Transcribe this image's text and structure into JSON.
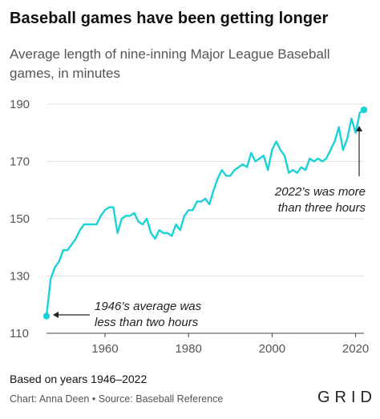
{
  "header": {
    "title": "Baseball games have been getting longer",
    "subtitle": "Average length of nine-inning Major League Baseball games, in minutes"
  },
  "footer": {
    "note": "Based on years 1946–2022",
    "credit": "Chart: Anna Deen • Source: Baseball Reference",
    "logo": "GRID"
  },
  "annotations": {
    "start_line1": "1946’s average was",
    "start_line2": "less than two hours",
    "end_line1": "2022’s was more",
    "end_line2": "than three hours"
  },
  "colors": {
    "line": "#1ad1d8",
    "grid": "#e3e3e3",
    "axis": "#444444"
  },
  "chart_data": {
    "type": "line",
    "title": "Baseball games have been getting longer",
    "subtitle": "Average length of nine-inning Major League Baseball games, in minutes",
    "xlim": [
      1946,
      2022
    ],
    "ylim": [
      110,
      190
    ],
    "xticks": [
      1960,
      1980,
      2000,
      2020
    ],
    "yticks": [
      110,
      130,
      150,
      170,
      190
    ],
    "grid": true,
    "x": [
      1946,
      1947,
      1948,
      1949,
      1950,
      1951,
      1952,
      1953,
      1954,
      1955,
      1956,
      1957,
      1958,
      1959,
      1960,
      1961,
      1962,
      1963,
      1964,
      1965,
      1966,
      1967,
      1968,
      1969,
      1970,
      1971,
      1972,
      1973,
      1974,
      1975,
      1976,
      1977,
      1978,
      1979,
      1980,
      1981,
      1982,
      1983,
      1984,
      1985,
      1986,
      1987,
      1988,
      1989,
      1990,
      1991,
      1992,
      1993,
      1994,
      1995,
      1996,
      1997,
      1998,
      1999,
      2000,
      2001,
      2002,
      2003,
      2004,
      2005,
      2006,
      2007,
      2008,
      2009,
      2010,
      2011,
      2012,
      2013,
      2014,
      2015,
      2016,
      2017,
      2018,
      2019,
      2020,
      2021,
      2022
    ],
    "series": [
      {
        "values": [
          116,
          129,
          133,
          135,
          139,
          139,
          141,
          143,
          146,
          148,
          148,
          148,
          148,
          151,
          153,
          154,
          154,
          145,
          150,
          151,
          151,
          152,
          149,
          148,
          150,
          145,
          143,
          146,
          145,
          145,
          144,
          148,
          146,
          151,
          153,
          153,
          156,
          156,
          157,
          155,
          160,
          164,
          167,
          165,
          165,
          167,
          168,
          169,
          168,
          173,
          170,
          171,
          172,
          167,
          174,
          177,
          174,
          172,
          166,
          167,
          166,
          168,
          167,
          171,
          170,
          171,
          170,
          171,
          174,
          177,
          182,
          174,
          178,
          185,
          180,
          187,
          188
        ]
      }
    ]
  }
}
